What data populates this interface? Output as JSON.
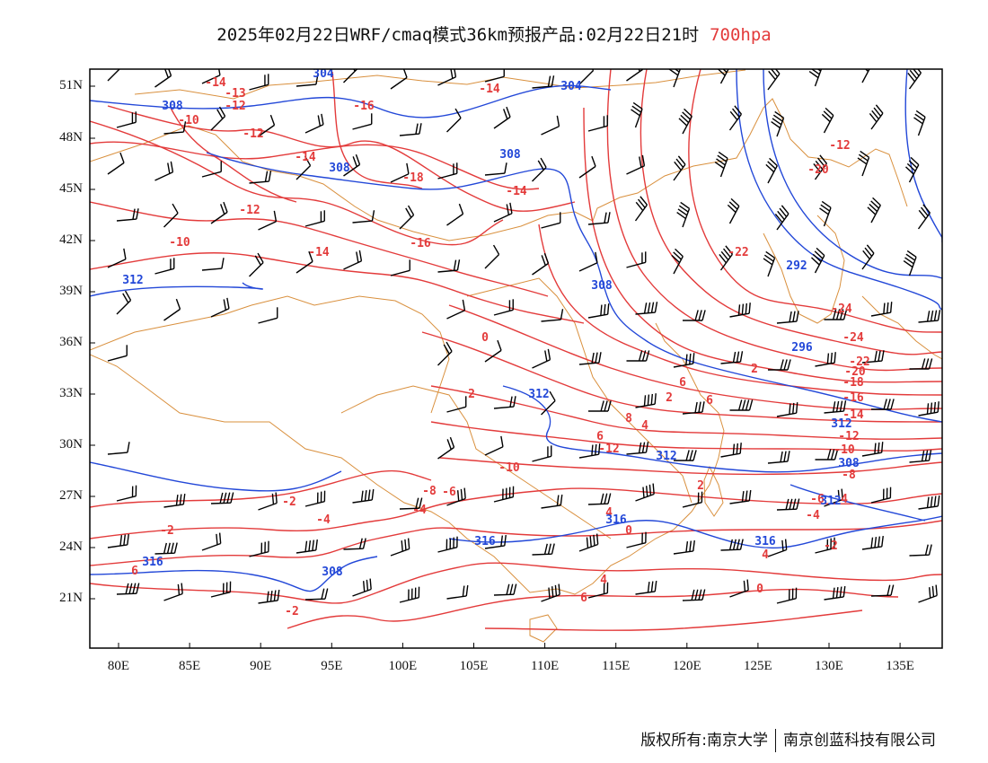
{
  "title": {
    "text": "2025年02月22日WRF/cmaq模式36km预报产品:02月22日21时",
    "level": "700hpa"
  },
  "colors": {
    "temperature": "#e33b3b",
    "geopotential": "#2348d8",
    "boundary": "#d9903e",
    "wind": "#000000",
    "title_level": "#e33b3b"
  },
  "map": {
    "lon_range": [
      78,
      138
    ],
    "lat_range": [
      17,
      52
    ],
    "lat_ticks": [
      "51N",
      "48N",
      "45N",
      "42N",
      "39N",
      "36N",
      "33N",
      "30N",
      "27N",
      "24N",
      "21N"
    ],
    "lon_ticks": [
      "80E",
      "85E",
      "90E",
      "95E",
      "100E",
      "105E",
      "110E",
      "115E",
      "120E",
      "125E",
      "130E",
      "135E"
    ]
  },
  "temperature_labels": [
    "-14",
    "-13",
    "-12",
    "-16",
    "-10",
    "-12",
    "-14",
    "-14",
    "-18",
    "-12",
    "-14",
    "-16",
    "-10",
    "-14",
    "-12",
    "-20",
    "-22",
    "-24",
    "-24",
    "-22",
    "-20",
    "-18",
    "-16",
    "-14",
    "-12",
    "-10",
    "-8",
    "-6",
    "-4",
    "-2",
    "0",
    "2",
    "4",
    "6",
    "-12",
    "-10",
    "-8",
    "-6",
    "-4",
    "-2",
    "-2",
    "-4",
    "6",
    "-2",
    "4",
    "0",
    "4",
    "6",
    "2",
    "4",
    "0",
    "2",
    "4",
    "6",
    "2",
    "6",
    "8"
  ],
  "height_labels": [
    "304",
    "308",
    "308",
    "304",
    "308",
    "312",
    "308",
    "312",
    "292",
    "296",
    "312",
    "308",
    "312",
    "316",
    "316",
    "316",
    "316",
    "308",
    "312"
  ],
  "footer": {
    "left": "版权所有:南京大学",
    "right": "南京创蓝科技有限公司"
  }
}
